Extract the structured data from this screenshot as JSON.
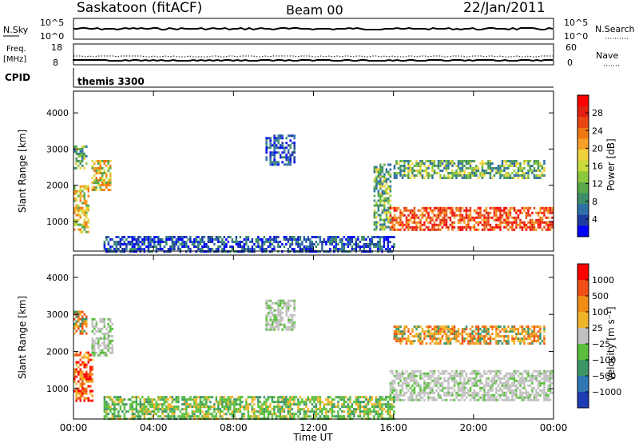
{
  "header": {
    "station": "Saskatoon (fitACF)",
    "beam": "Beam 00",
    "date": "22/Jan/2011"
  },
  "summary_panels": {
    "nsky_label": "N.Sky",
    "nsky_ticks": [
      "10^5",
      "10^0"
    ],
    "nsearch_label": "N.Search",
    "nsearch_ticks": [
      "10^5",
      "10^0"
    ],
    "freq_label": "Freq.",
    "freq_unit": "[MHz]",
    "freq_ticks": [
      "18",
      "8"
    ],
    "nave_label": "Nave",
    "nave_ticks": [
      "60",
      "0"
    ],
    "cpid_label": "CPID",
    "cpid_value": "themis 3300"
  },
  "chart_data": [
    {
      "type": "heatmap",
      "title": "",
      "ylabel": "Slant Range [km]",
      "xlabel": "",
      "x_ticks": [
        "00:00",
        "04:00",
        "08:00",
        "12:00",
        "16:00",
        "20:00",
        "00:00"
      ],
      "y_ticks": [
        "4000",
        "3000",
        "2000",
        "1000"
      ],
      "xlim_hours": [
        0,
        24
      ],
      "ylim_km": [
        180,
        4600
      ],
      "colorbar": {
        "label": "Power [dB]",
        "ticks": [
          "28",
          "24",
          "20",
          "16",
          "12",
          "8",
          "4"
        ],
        "colors": [
          "#0000ff",
          "#1e3ca0",
          "#2f6fa8",
          "#3d8c6a",
          "#5aa84a",
          "#8cc83c",
          "#c8dc3c",
          "#f0d23c",
          "#f5a028",
          "#f07814",
          "#e84614",
          "#e02010",
          "#ff0000"
        ]
      },
      "regions": [
        {
          "h0": 0.0,
          "h1": 0.6,
          "r0": 2500,
          "r1": 3100,
          "level": "mid"
        },
        {
          "h0": 0.0,
          "h1": 0.7,
          "r0": 700,
          "r1": 2000,
          "level": "mid-high"
        },
        {
          "h0": 0.9,
          "h1": 1.8,
          "r0": 1900,
          "r1": 2700,
          "level": "mid-high"
        },
        {
          "h0": 9.6,
          "h1": 11.0,
          "r0": 2600,
          "r1": 3400,
          "level": "low"
        },
        {
          "h0": 15.0,
          "h1": 15.8,
          "r0": 800,
          "r1": 2600,
          "level": "mid"
        },
        {
          "h0": 15.8,
          "h1": 23.9,
          "r0": 800,
          "r1": 1400,
          "level": "high"
        },
        {
          "h0": 16.0,
          "h1": 23.5,
          "r0": 2200,
          "r1": 2700,
          "level": "mid"
        },
        {
          "h0": 1.5,
          "h1": 16.0,
          "r0": 200,
          "r1": 600,
          "level": "low"
        }
      ]
    },
    {
      "type": "heatmap",
      "title": "",
      "ylabel": "Slant Range [km]",
      "xlabel": "Time UT",
      "x_ticks": [
        "00:00",
        "04:00",
        "08:00",
        "12:00",
        "16:00",
        "20:00",
        "00:00"
      ],
      "y_ticks": [
        "4000",
        "3000",
        "2000",
        "1000"
      ],
      "xlim_hours": [
        0,
        24
      ],
      "ylim_km": [
        180,
        4600
      ],
      "colorbar": {
        "label": "Velocity [m s⁻¹]",
        "ticks": [
          "1000",
          "500",
          "100",
          "25",
          "−25",
          "−100",
          "−500",
          "−1000"
        ],
        "colors": [
          "#1e3cb4",
          "#2f78b4",
          "#3c9664",
          "#5abe3c",
          "#c0c0c0",
          "#f0b428",
          "#f08c14",
          "#f05014",
          "#ff0000"
        ]
      },
      "regions": [
        {
          "h0": 0.0,
          "h1": 0.6,
          "r0": 2500,
          "r1": 3100,
          "level": "orange"
        },
        {
          "h0": 0.0,
          "h1": 0.9,
          "r0": 700,
          "r1": 2000,
          "level": "orange-red"
        },
        {
          "h0": 0.9,
          "h1": 1.9,
          "r0": 1900,
          "r1": 2900,
          "level": "grey"
        },
        {
          "h0": 9.6,
          "h1": 11.0,
          "r0": 2600,
          "r1": 3400,
          "level": "grey"
        },
        {
          "h0": 15.8,
          "h1": 23.9,
          "r0": 700,
          "r1": 1500,
          "level": "grey"
        },
        {
          "h0": 16.0,
          "h1": 23.5,
          "r0": 2200,
          "r1": 2700,
          "level": "orange"
        },
        {
          "h0": 1.5,
          "h1": 16.0,
          "r0": 200,
          "r1": 800,
          "level": "green"
        }
      ]
    }
  ]
}
